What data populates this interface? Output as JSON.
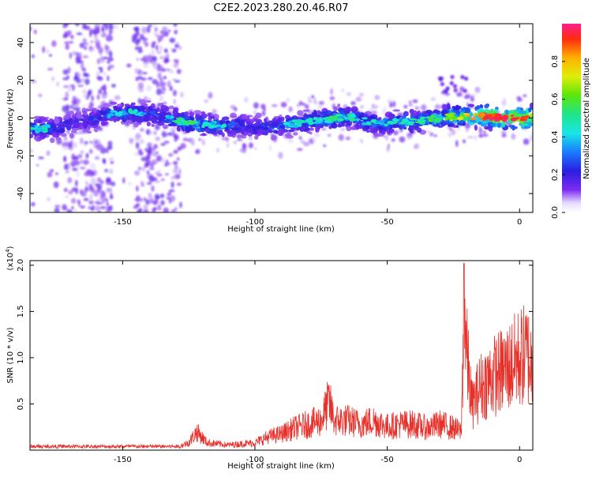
{
  "title": "C2E2.2023.280.20.46.R07",
  "chart_data": [
    {
      "type": "heatmap",
      "xlabel": "Height of straight line (km)",
      "ylabel": "Frequency (Hz)",
      "xlim": [
        -185,
        5
      ],
      "ylim": [
        -50,
        50
      ],
      "xticks": [
        -150,
        -100,
        -50,
        0
      ],
      "yticks": [
        -40,
        -20,
        0,
        20,
        40
      ],
      "colorbar": {
        "label": "Normalized spectral amplitude",
        "range": [
          0,
          1
        ],
        "ticks": [
          0.0,
          0.2,
          0.4,
          0.6,
          0.8
        ]
      },
      "ridge": {
        "x": [
          -185,
          -175,
          -165,
          -155,
          -145,
          -135,
          -125,
          -115,
          -105,
          -95,
          -85,
          -75,
          -65,
          -55,
          -45,
          -35,
          -25,
          -15,
          -5,
          3
        ],
        "y": [
          -6,
          -5,
          -2,
          2,
          3,
          1,
          -3,
          -4,
          -4,
          -5,
          -3,
          -1,
          1,
          -3,
          -2,
          -1,
          1,
          1,
          0,
          0
        ],
        "amplitude": [
          0.4,
          0.3,
          0.25,
          0.35,
          0.35,
          0.3,
          0.45,
          0.35,
          0.3,
          0.3,
          0.35,
          0.4,
          0.4,
          0.35,
          0.4,
          0.45,
          0.55,
          0.8,
          0.9,
          0.85
        ]
      }
    },
    {
      "type": "line",
      "xlabel": "Height of straight line (km)",
      "ylabel": "SNR (10 * v/v)",
      "yscale_label": "(x10^4)",
      "xlim": [
        -185,
        5
      ],
      "ylim": [
        0,
        2.05
      ],
      "xticks": [
        -150,
        -100,
        -50,
        0
      ],
      "yticks": [
        0.5,
        1.0,
        1.5,
        2.0
      ],
      "series": [
        {
          "color": "#e8302a",
          "x": [
            -185,
            -175,
            -165,
            -155,
            -145,
            -135,
            -128,
            -125,
            -122,
            -118,
            -110,
            -100,
            -95,
            -90,
            -85,
            -80,
            -75,
            -72,
            -70,
            -65,
            -60,
            -55,
            -50,
            -45,
            -40,
            -35,
            -30,
            -25,
            -22,
            -21,
            -20,
            -18,
            -15,
            -10,
            -5,
            0,
            3,
            5
          ],
          "y": [
            0.05,
            0.04,
            0.05,
            0.05,
            0.05,
            0.05,
            0.06,
            0.1,
            0.25,
            0.1,
            0.07,
            0.1,
            0.18,
            0.22,
            0.3,
            0.35,
            0.4,
            0.65,
            0.4,
            0.4,
            0.35,
            0.4,
            0.32,
            0.35,
            0.35,
            0.3,
            0.35,
            0.3,
            0.25,
            2.02,
            1.3,
            0.6,
            0.85,
            1.0,
            1.1,
            1.25,
            1.3,
            1.1
          ]
        }
      ]
    }
  ]
}
